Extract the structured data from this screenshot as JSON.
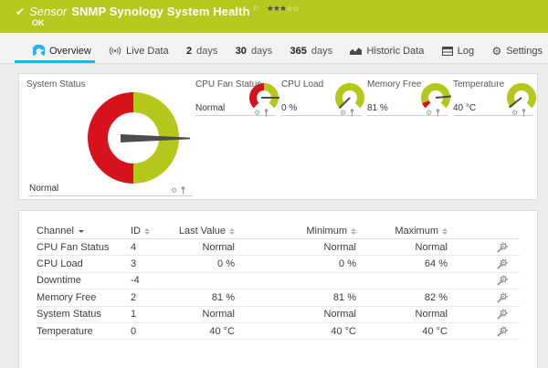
{
  "header": {
    "check_icon": "✔",
    "kind": "Sensor",
    "title": "SNMP Synology System Health",
    "status": "OK",
    "rating": {
      "filled": 3,
      "total": 5,
      "filled_glyph": "★",
      "empty_glyph": "☆"
    }
  },
  "tabs": {
    "overview": "Overview",
    "live": "Live Data",
    "d2_num": "2",
    "d2_unit": "days",
    "d30_num": "30",
    "d30_unit": "days",
    "d365_num": "365",
    "d365_unit": "days",
    "historic": "Historic Data",
    "log": "Log",
    "settings": "Settings",
    "settings_gear_glyph": "⚙"
  },
  "gauges": {
    "system": {
      "title": "System Status",
      "value": "Normal"
    },
    "cpu_fan": {
      "title": "CPU Fan Status",
      "value": "Normal"
    },
    "cpu_load": {
      "title": "CPU Load",
      "value": "0 %"
    },
    "memory_free": {
      "title": "Memory Free",
      "value": "81 %"
    },
    "temperature": {
      "title": "Temperature",
      "value": "40 °C"
    },
    "mini_gear_glyph": "⚙"
  },
  "table": {
    "headers": {
      "channel": "Channel",
      "id": "ID",
      "last": "Last Value",
      "min": "Minimum",
      "max": "Maximum"
    },
    "rows": [
      {
        "channel": "CPU Fan Status",
        "id": "4",
        "last": "Normal",
        "min": "Normal",
        "max": "Normal"
      },
      {
        "channel": "CPU Load",
        "id": "3",
        "last": "0 %",
        "min": "0 %",
        "max": "64 %"
      },
      {
        "channel": "Downtime",
        "id": "-4",
        "last": "",
        "min": "",
        "max": ""
      },
      {
        "channel": "Memory Free",
        "id": "2",
        "last": "81 %",
        "min": "81 %",
        "max": "82 %"
      },
      {
        "channel": "System Status",
        "id": "1",
        "last": "Normal",
        "min": "Normal",
        "max": "Normal"
      },
      {
        "channel": "Temperature",
        "id": "0",
        "last": "40 °C",
        "min": "40 °C",
        "max": "40 °C"
      }
    ]
  },
  "colors": {
    "status_green": "#b6c81e",
    "gauge_green": "#b4c71a",
    "alarm_red": "#d8121c",
    "active_tab_blue": "#2ab0e8",
    "needle_gray": "#4c4c4c"
  }
}
